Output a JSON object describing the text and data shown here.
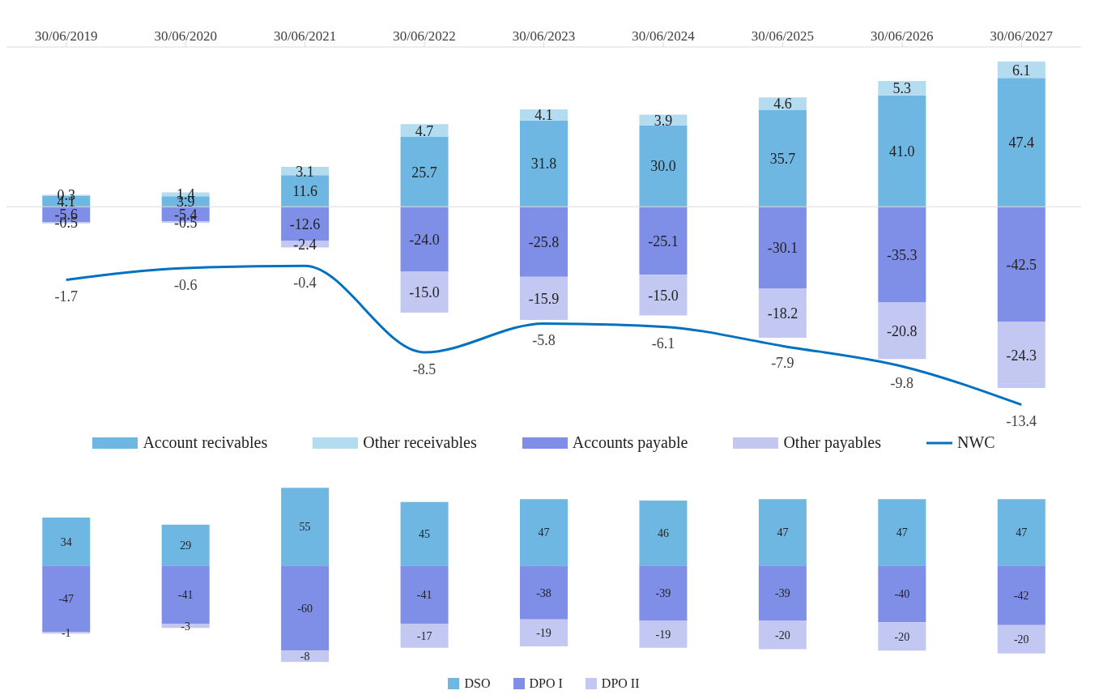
{
  "chart_data": [
    {
      "type": "bar",
      "stacked": true,
      "legend": "bottom",
      "tick_labels": "x",
      "categories": [
        "30/06/2019",
        "30/06/2020",
        "30/06/2021",
        "30/06/2022",
        "30/06/2023",
        "30/06/2024",
        "30/06/2025",
        "30/06/2026",
        "30/06/2027"
      ],
      "series": [
        {
          "name": "Account recivables",
          "color": "#6fb7e3",
          "values": [
            4.1,
            3.9,
            11.6,
            25.7,
            31.8,
            30.0,
            35.7,
            41.0,
            47.4
          ],
          "value_labels": [
            "4.1",
            "3.9",
            "11.6",
            "25.7",
            "31.8",
            "30.0",
            "35.7",
            "41.0",
            "47.4"
          ]
        },
        {
          "name": "Other receivables",
          "color": "#b3dcf0",
          "values": [
            0.3,
            1.4,
            3.1,
            4.7,
            4.1,
            3.9,
            4.6,
            5.3,
            6.1
          ],
          "value_labels": [
            "0.3",
            "1.4",
            "3.1",
            "4.7",
            "4.1",
            "3.9",
            "4.6",
            "5.3",
            "6.1"
          ]
        },
        {
          "name": "Accounts payable",
          "color": "#7f8ee6",
          "values": [
            -5.6,
            -5.4,
            -12.6,
            -24.0,
            -25.8,
            -25.1,
            -30.1,
            -35.3,
            -42.5
          ],
          "value_labels": [
            "-5.6",
            "-5.4",
            "-12.6",
            "-24.0",
            "-25.8",
            "-25.1",
            "-30.1",
            "-35.3",
            "-42.5"
          ]
        },
        {
          "name": "Other payables",
          "color": "#c3c8f3",
          "values": [
            -0.5,
            -0.5,
            -2.4,
            -15.0,
            -15.9,
            -15.0,
            -18.2,
            -20.8,
            -24.3
          ],
          "value_labels": [
            "-0.5",
            "-0.5",
            "-2.4",
            "-15.0",
            "-15.9",
            "-15.0",
            "-18.2",
            "-20.8",
            "-24.3"
          ]
        },
        {
          "name": "NWC",
          "type": "line",
          "axis": "y2",
          "color": "#0070c0",
          "values": [
            -1.7,
            -0.6,
            -0.4,
            -8.5,
            -5.8,
            -6.1,
            -7.9,
            -9.8,
            -13.4
          ],
          "value_labels": [
            "-1.7",
            "-0.6",
            "-0.4",
            "-8.5",
            "-5.8",
            "-6.1",
            "-7.9",
            "-9.8",
            "-13.4"
          ]
        }
      ]
    },
    {
      "type": "bar",
      "stacked": true,
      "data_labels": true,
      "legend": "bottom",
      "tick_labels": false,
      "categories": [
        null,
        null,
        null,
        null,
        null,
        null,
        null,
        null,
        null
      ],
      "series": [
        {
          "name": "DSO",
          "color": "#6fb7e3",
          "values": [
            34,
            29,
            55,
            45,
            47,
            46,
            47,
            47,
            47
          ]
        },
        {
          "name": "DPO I",
          "color": "#7f8ee6",
          "values": [
            -47,
            -41,
            -60,
            -41,
            -38,
            -39,
            -39,
            -40,
            -42
          ]
        },
        {
          "name": "DPO II",
          "color": "#c3c8f3",
          "values": [
            -1,
            -3,
            -8,
            -17,
            -19,
            -19,
            -20,
            -20,
            -20
          ]
        }
      ]
    }
  ]
}
